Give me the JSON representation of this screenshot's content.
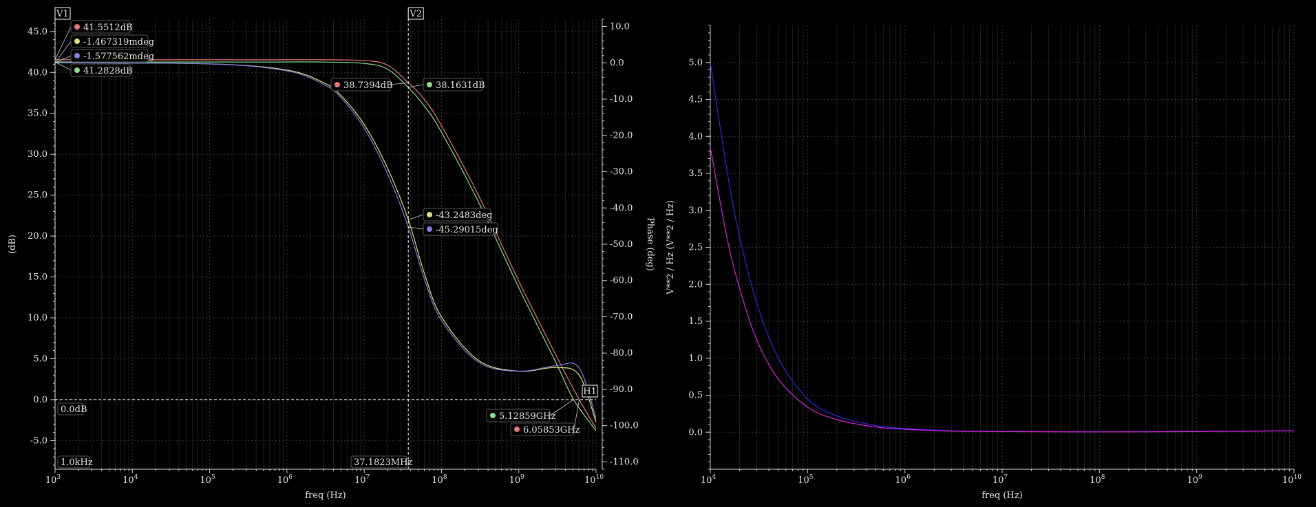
{
  "chart_data": [
    {
      "type": "line",
      "name": "bode-plot",
      "xlabel": "freq (Hz)",
      "ylabel": "(dB)",
      "y2label": "Phase (deg)",
      "xscale": "log",
      "xlim": [
        1000,
        10000000000
      ],
      "ylim": [
        -8.5,
        46.5
      ],
      "y2lim": [
        -112,
        12
      ],
      "grid": true,
      "xticks": [
        {
          "v": 1000,
          "mant": "10",
          "exp": "3"
        },
        {
          "v": 10000,
          "mant": "10",
          "exp": "4"
        },
        {
          "v": 100000,
          "mant": "10",
          "exp": "5"
        },
        {
          "v": 1000000,
          "mant": "10",
          "exp": "6"
        },
        {
          "v": 10000000,
          "mant": "10",
          "exp": "7"
        },
        {
          "v": 100000000,
          "mant": "10",
          "exp": "8"
        },
        {
          "v": 1000000000,
          "mant": "10",
          "exp": "9"
        },
        {
          "v": 10000000000,
          "mant": "10",
          "exp": "10"
        }
      ],
      "yticks": [
        {
          "v": 45,
          "label": "45.0"
        },
        {
          "v": 40,
          "label": "40.0"
        },
        {
          "v": 35,
          "label": "35.0"
        },
        {
          "v": 30,
          "label": "30.0"
        },
        {
          "v": 25,
          "label": "25.0"
        },
        {
          "v": 20,
          "label": "20.0"
        },
        {
          "v": 15,
          "label": "15.0"
        },
        {
          "v": 10,
          "label": "10.0"
        },
        {
          "v": 5,
          "label": "5.0"
        },
        {
          "v": 0,
          "label": "0.0"
        },
        {
          "v": -5,
          "label": "-5.0"
        }
      ],
      "y2ticks": [
        {
          "v": 10,
          "label": "10.0"
        },
        {
          "v": 0,
          "label": "0.0"
        },
        {
          "v": -10,
          "label": "-10.0"
        },
        {
          "v": -20,
          "label": "-20.0"
        },
        {
          "v": -30,
          "label": "-30.0"
        },
        {
          "v": -40,
          "label": "-40.0"
        },
        {
          "v": -50,
          "label": "-50.0"
        },
        {
          "v": -60,
          "label": "-60.0"
        },
        {
          "v": -70,
          "label": "-70.0"
        },
        {
          "v": -80,
          "label": "-80.0"
        },
        {
          "v": -90,
          "label": "-90.0"
        },
        {
          "v": -100,
          "label": "-100.0"
        },
        {
          "v": -110,
          "label": "-110.0"
        }
      ],
      "series": [
        {
          "color": "#e87878",
          "axis": "y",
          "x": [
            1000,
            10000,
            100000,
            1000000,
            3000000,
            10000000,
            20000000,
            37182300,
            60000000,
            100000000,
            300000000,
            1000000000,
            3000000000,
            6058530000,
            10000000000
          ],
          "y": [
            41.55,
            41.55,
            41.55,
            41.55,
            41.55,
            41.45,
            40.9,
            38.74,
            36.7,
            33.5,
            25.0,
            14.5,
            5.5,
            0.0,
            -3.5
          ]
        },
        {
          "color": "#88e088",
          "axis": "y",
          "x": [
            1000,
            10000,
            100000,
            1000000,
            3000000,
            10000000,
            20000000,
            37182300,
            60000000,
            100000000,
            300000000,
            1000000000,
            3000000000,
            5128590000,
            10000000000
          ],
          "y": [
            41.28,
            41.28,
            41.28,
            41.28,
            41.27,
            41.1,
            40.4,
            38.16,
            35.9,
            32.7,
            24.2,
            13.7,
            4.6,
            0.0,
            -3.8
          ]
        },
        {
          "color": "#e0e07a",
          "axis": "y2",
          "x": [
            1000,
            100000,
            1000000,
            3000000,
            5000000,
            10000000,
            20000000,
            37182300,
            60000000,
            100000000,
            300000000,
            1000000000,
            3000000000,
            6000000000,
            10000000000
          ],
          "y": [
            -0.0015,
            -0.3,
            -2,
            -5.5,
            -9,
            -17,
            -29,
            -43.25,
            -58,
            -70,
            -82,
            -85,
            -84,
            -86,
            -99
          ]
        },
        {
          "color": "#8080e8",
          "axis": "y2",
          "x": [
            1000,
            100000,
            1000000,
            3000000,
            5000000,
            10000000,
            20000000,
            37182300,
            60000000,
            100000000,
            300000000,
            1000000000,
            3000000000,
            6000000000,
            10000000000
          ],
          "y": [
            -0.0016,
            -0.3,
            -2.2,
            -6,
            -9.6,
            -18,
            -30.5,
            -45.29,
            -59.5,
            -71,
            -82.5,
            -85,
            -83.5,
            -84,
            -98
          ]
        }
      ],
      "reference_lines": {
        "v1": {
          "label": "V1",
          "x": 1000,
          "readout": "1.0kHz"
        },
        "v2": {
          "label": "V2",
          "x": 37182300,
          "readout": "37.1823MHz"
        },
        "h1": {
          "label": "H1",
          "y": 0,
          "readout": "0.0dB"
        }
      },
      "markers": [
        {
          "label": "41.5512dB",
          "color": "#e87878",
          "x": 1000,
          "y": 41.5512,
          "axis": "y"
        },
        {
          "label": "-1.467319mdeg",
          "color": "#e0e07a",
          "x": 1000,
          "y": -0.0015,
          "axis": "y2"
        },
        {
          "label": "-1.577562mdeg",
          "color": "#8080e8",
          "x": 1000,
          "y": -0.0016,
          "axis": "y2"
        },
        {
          "label": "41.2828dB",
          "color": "#88e088",
          "x": 1000,
          "y": 41.2828,
          "axis": "y"
        },
        {
          "label": "38.7394dB",
          "color": "#e87878",
          "x": 37182300,
          "y": 38.7394,
          "axis": "y"
        },
        {
          "label": "38.1631dB",
          "color": "#88e088",
          "x": 37182300,
          "y": 38.1631,
          "axis": "y"
        },
        {
          "label": "-43.2483deg",
          "color": "#e0e07a",
          "x": 37182300,
          "y": -43.2483,
          "axis": "y2"
        },
        {
          "label": "-45.29015deg",
          "color": "#8080e8",
          "x": 37182300,
          "y": -45.29015,
          "axis": "y2"
        },
        {
          "label": "5.12859GHz",
          "color": "#88e088",
          "x": 5128590000,
          "y": 0,
          "axis": "y"
        },
        {
          "label": "6.05853GHz",
          "color": "#e87878",
          "x": 6058530000,
          "y": 0,
          "axis": "y"
        }
      ]
    },
    {
      "type": "line",
      "name": "noise-plot",
      "xlabel": "freq (Hz)",
      "ylabel": "V**2 / Hz (V**2 / Hz)",
      "xscale": "log",
      "xlim": [
        10000,
        10000000000
      ],
      "ylim": [
        -0.5,
        5.5
      ],
      "grid": true,
      "xticks": [
        {
          "v": 10000,
          "mant": "10",
          "exp": "4"
        },
        {
          "v": 100000,
          "mant": "10",
          "exp": "5"
        },
        {
          "v": 1000000,
          "mant": "10",
          "exp": "6"
        },
        {
          "v": 10000000,
          "mant": "10",
          "exp": "7"
        },
        {
          "v": 100000000,
          "mant": "10",
          "exp": "8"
        },
        {
          "v": 1000000000,
          "mant": "10",
          "exp": "9"
        },
        {
          "v": 10000000000,
          "mant": "10",
          "exp": "10"
        }
      ],
      "yticks": [
        {
          "v": 5,
          "label": "5.0"
        },
        {
          "v": 4.5,
          "label": "4.5"
        },
        {
          "v": 4,
          "label": "4.0"
        },
        {
          "v": 3.5,
          "label": "3.5"
        },
        {
          "v": 3,
          "label": "3.0"
        },
        {
          "v": 2.5,
          "label": "2.5"
        },
        {
          "v": 2,
          "label": "2.0"
        },
        {
          "v": 1.5,
          "label": "1.5"
        },
        {
          "v": 1,
          "label": "1.0"
        },
        {
          "v": 0.5,
          "label": "0.5"
        },
        {
          "v": 0,
          "label": "0.0"
        }
      ],
      "series": [
        {
          "color": "#2a2ae0",
          "x": [
            10000,
            15000,
            20000,
            30000,
            50000,
            100000,
            200000,
            500000,
            1000000,
            3000000,
            10000000,
            100000000,
            1000000000,
            10000000000
          ],
          "y": [
            5.0,
            3.5,
            2.65,
            1.75,
            1.0,
            0.45,
            0.22,
            0.09,
            0.05,
            0.02,
            0.01,
            0.005,
            0.01,
            0.02
          ]
        },
        {
          "color": "#e020e0",
          "x": [
            10000,
            15000,
            20000,
            30000,
            50000,
            100000,
            200000,
            500000,
            1000000,
            3000000,
            10000000,
            100000000,
            1000000000,
            10000000000
          ],
          "y": [
            3.85,
            2.6,
            1.95,
            1.25,
            0.72,
            0.34,
            0.17,
            0.07,
            0.04,
            0.015,
            0.008,
            0.004,
            0.008,
            0.02
          ]
        }
      ]
    }
  ]
}
